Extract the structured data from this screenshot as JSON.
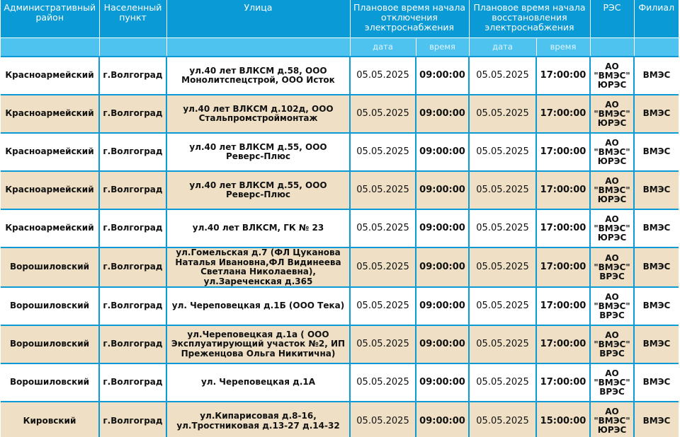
{
  "colors": {
    "header_bg": "#0a9ad6",
    "subheader_bg": "#4fc3f0",
    "row_even_bg": "#efe0c5",
    "row_odd_bg": "#ffffff",
    "grid_line": "#0a9ad6"
  },
  "headers": {
    "district": "Административный район",
    "locality": "Населенный пункт",
    "street": "Улица",
    "planned_off": "Плановое время начала отключения электроснабжения",
    "planned_on": "Плановое время начала восстановления электроснабжения",
    "res": "РЭС",
    "branch": "Филиал",
    "sub_date_1": "дата",
    "sub_time_1": "время",
    "sub_date_2": "дата",
    "sub_time_2": "время"
  },
  "rows": [
    {
      "district": "Красноармейский",
      "locality": "г.Волгоград",
      "street": "ул.40 лет ВЛКСМ д.58, ООО Монолитспецстрой, ООО Исток",
      "off_date": "05.05.2025",
      "off_time": "09:00:00",
      "on_date": "05.05.2025",
      "on_time": "17:00:00",
      "res_1": "АО",
      "res_2": "\"ВМЭС\"",
      "res_3": "ЮРЭС",
      "branch": "ВМЭС"
    },
    {
      "district": "Красноармейский",
      "locality": "г.Волгоград",
      "street": "ул.40 лет ВЛКСМ д.102д, ООО Стальпромстроймонтаж",
      "off_date": "05.05.2025",
      "off_time": "09:00:00",
      "on_date": "05.05.2025",
      "on_time": "17:00:00",
      "res_1": "АО",
      "res_2": "\"ВМЭС\"",
      "res_3": "ЮРЭС",
      "branch": "ВМЭС"
    },
    {
      "district": "Красноармейский",
      "locality": "г.Волгоград",
      "street": "ул.40 лет ВЛКСМ д.55, ООО Реверс-Плюс",
      "off_date": "05.05.2025",
      "off_time": "09:00:00",
      "on_date": "05.05.2025",
      "on_time": "17:00:00",
      "res_1": "АО",
      "res_2": "\"ВМЭС\"",
      "res_3": "ЮРЭС",
      "branch": "ВМЭС"
    },
    {
      "district": "Красноармейский",
      "locality": "г.Волгоград",
      "street": "ул.40 лет ВЛКСМ д.55, ООО Реверс-Плюс",
      "off_date": "05.05.2025",
      "off_time": "09:00:00",
      "on_date": "05.05.2025",
      "on_time": "17:00:00",
      "res_1": "АО",
      "res_2": "\"ВМЭС\"",
      "res_3": "ЮРЭС",
      "branch": "ВМЭС"
    },
    {
      "district": "Красноармейский",
      "locality": "г.Волгоград",
      "street": "ул.40 лет ВЛКСМ, ГК № 23",
      "off_date": "05.05.2025",
      "off_time": "09:00:00",
      "on_date": "05.05.2025",
      "on_time": "17:00:00",
      "res_1": "АО",
      "res_2": "\"ВМЭС\"",
      "res_3": "ЮРЭС",
      "branch": "ВМЭС"
    },
    {
      "district": "Ворошиловский",
      "locality": "г.Волгоград",
      "street": "ул.Гомельская д.7 (ФЛ Цуканова Наталья Ивановна,ФЛ Видинеева Светлана Николаевна), ул.Зареченская д.365",
      "off_date": "05.05.2025",
      "off_time": "09:00:00",
      "on_date": "05.05.2025",
      "on_time": "17:00:00",
      "res_1": "АО",
      "res_2": "\"ВМЭС\"",
      "res_3": "ВРЭС",
      "branch": "ВМЭС"
    },
    {
      "district": "Ворошиловский",
      "locality": "г.Волгоград",
      "street": "ул. Череповецкая д.1Б (ООО Тека)",
      "off_date": "05.05.2025",
      "off_time": "09:00:00",
      "on_date": "05.05.2025",
      "on_time": "17:00:00",
      "res_1": "АО",
      "res_2": "\"ВМЭС\"",
      "res_3": "ВРЭС",
      "branch": "ВМЭС"
    },
    {
      "district": "Ворошиловский",
      "locality": "г.Волгоград",
      "street": "ул.Череповецкая д.1а ( ООО Эксплуатирующий участок №2, ИП Преженцова Ольга Никитична)",
      "off_date": "05.05.2025",
      "off_time": "09:00:00",
      "on_date": "05.05.2025",
      "on_time": "17:00:00",
      "res_1": "АО",
      "res_2": "\"ВМЭС\"",
      "res_3": "ВРЭС",
      "branch": "ВМЭС"
    },
    {
      "district": "Ворошиловский",
      "locality": "г.Волгоград",
      "street": "ул. Череповецкая д.1А",
      "off_date": "05.05.2025",
      "off_time": "09:00:00",
      "on_date": "05.05.2025",
      "on_time": "17:00:00",
      "res_1": "АО",
      "res_2": "\"ВМЭС\"",
      "res_3": "ВРЭС",
      "branch": "ВМЭС"
    },
    {
      "district": "Кировский",
      "locality": "г.Волгоград",
      "street": "ул.Кипарисовая д.8-16, ул.Тростниковая д.13-27 д.14-32",
      "off_date": "05.05.2025",
      "off_time": "09:00:00",
      "on_date": "05.05.2025",
      "on_time": "15:00:00",
      "res_1": "АО",
      "res_2": "\"ВМЭС\"",
      "res_3": "ЮРЭС",
      "branch": "ВМЭС"
    }
  ]
}
